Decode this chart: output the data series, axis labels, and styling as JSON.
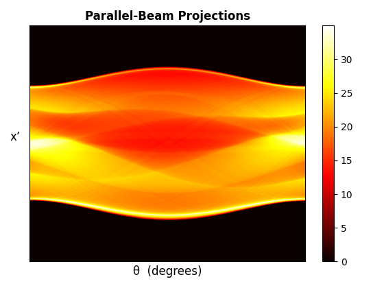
{
  "title": "Parallel-Beam Projections",
  "xlabel": "θ  (degrees)",
  "ylabel": "x’",
  "colormap": "hot",
  "vmin": 0,
  "vmax": 35,
  "colorbar_ticks": [
    0,
    5,
    10,
    15,
    20,
    25,
    30
  ],
  "n_angles": 180,
  "theta_min": 0,
  "theta_max": 180,
  "figsize": [
    5.6,
    4.2
  ],
  "dpi": 100,
  "title_fontsize": 12,
  "label_fontsize": 12,
  "scale_factor": 35.0
}
